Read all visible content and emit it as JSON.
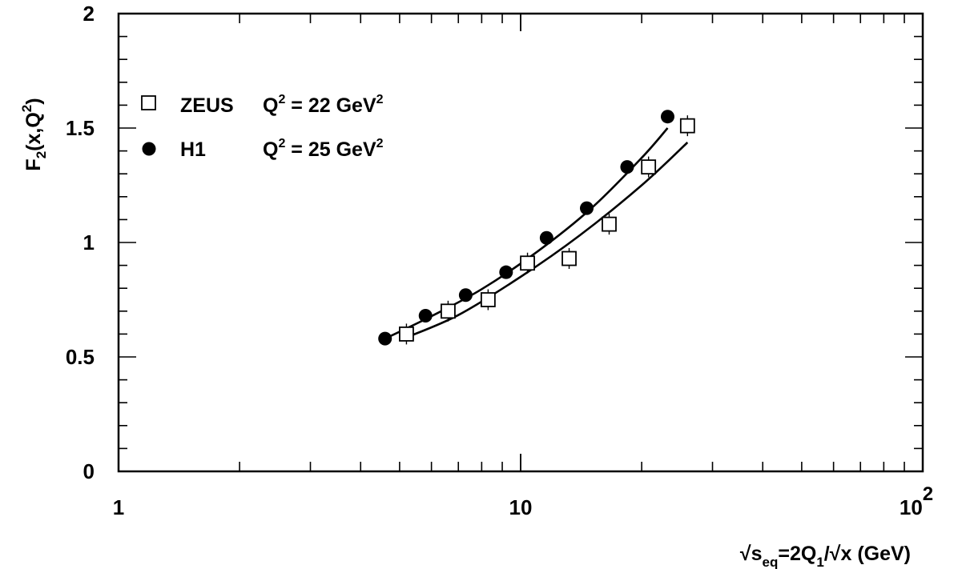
{
  "chart_data": {
    "type": "scatter",
    "xscale": "log",
    "xlim": [
      1,
      100
    ],
    "ylim": [
      0,
      2
    ],
    "x_ticks": [
      {
        "value": 1,
        "label": "1"
      },
      {
        "value": 10,
        "label": "10"
      },
      {
        "value": 100,
        "label": "10",
        "exp": "2"
      }
    ],
    "y_ticks": [
      {
        "value": 0,
        "label": "0"
      },
      {
        "value": 0.5,
        "label": "0.5"
      },
      {
        "value": 1,
        "label": "1"
      },
      {
        "value": 1.5,
        "label": "1.5"
      },
      {
        "value": 2,
        "label": "2"
      }
    ],
    "xlabel": {
      "pre": "√s",
      "sub1": "eq",
      "mid": "=2Q",
      "sub2": "1",
      "post": "/√x (GeV)"
    },
    "ylabel": {
      "pre": "F",
      "sub": "2",
      "mid": "(x,Q",
      "sup": "2",
      "post": ")"
    },
    "grid": false,
    "legend_position": "top-left",
    "series": [
      {
        "legend": {
          "name": "ZEUS",
          "q": "Q",
          "sup1": "2",
          "eq": " = 22 GeV",
          "sup2": "2"
        },
        "marker": "open-square",
        "x": [
          5.2,
          6.6,
          8.3,
          10.4,
          13.2,
          16.6,
          20.8,
          26.0
        ],
        "y": [
          0.6,
          0.7,
          0.75,
          0.91,
          0.93,
          1.08,
          1.33,
          1.51
        ],
        "curve": {
          "x": [
            5.2,
            7,
            10,
            14,
            20,
            26
          ],
          "y": [
            0.585,
            0.683,
            0.85,
            1.03,
            1.25,
            1.437
          ]
        }
      },
      {
        "legend": {
          "name": "H1",
          "q": "Q",
          "sup1": "2",
          "eq": " = 25 GeV",
          "sup2": "2"
        },
        "marker": "filled-circle",
        "x": [
          4.6,
          5.8,
          7.3,
          9.2,
          11.6,
          14.6,
          18.4,
          23.2
        ],
        "y": [
          0.58,
          0.68,
          0.77,
          0.87,
          1.02,
          1.15,
          1.33,
          1.55
        ],
        "curve": {
          "x": [
            4.6,
            6,
            8,
            11,
            15,
            20,
            23.2
          ],
          "y": [
            0.58,
            0.678,
            0.796,
            0.96,
            1.15,
            1.37,
            1.5
          ]
        }
      }
    ]
  }
}
